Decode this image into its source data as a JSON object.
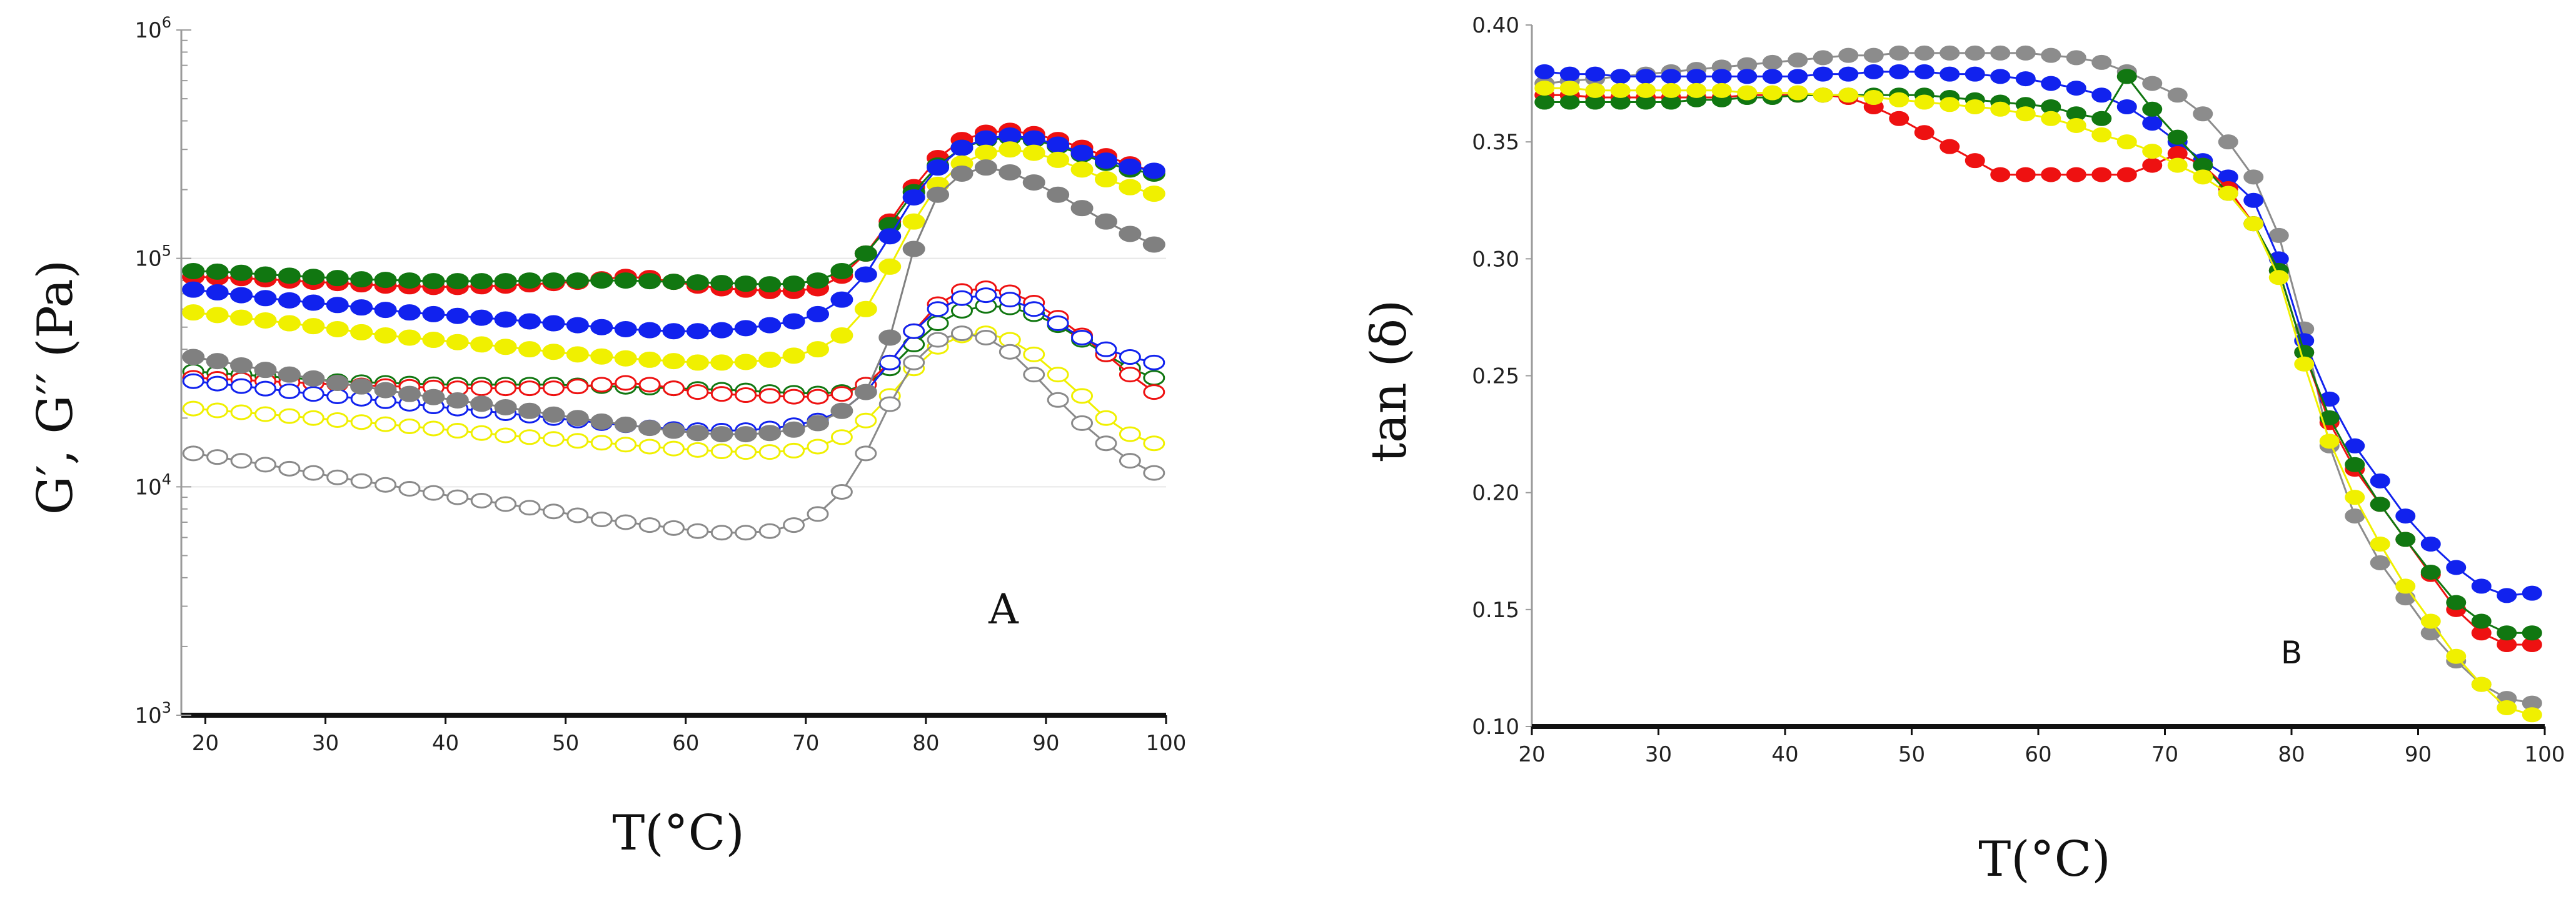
{
  "chart_data": [
    {
      "type": "scatter",
      "panel_label": "A",
      "title": "",
      "xlabel": "T(°C)",
      "ylabel": "G′, G′′ (Pa)",
      "xlim": [
        18,
        100
      ],
      "ylim": [
        1000,
        1000000
      ],
      "yscale": "log",
      "x_ticks": [
        20,
        30,
        40,
        50,
        60,
        70,
        80,
        90,
        100
      ],
      "y_ticks": [
        {
          "value": 1000,
          "base": "10",
          "exp": "3"
        },
        {
          "value": 10000,
          "base": "10",
          "exp": "4"
        },
        {
          "value": 100000,
          "base": "10",
          "exp": "5"
        },
        {
          "value": 1000000,
          "base": "10",
          "exp": "6"
        }
      ],
      "x": [
        19,
        21,
        23,
        25,
        27,
        29,
        31,
        33,
        35,
        37,
        39,
        41,
        43,
        45,
        47,
        49,
        51,
        53,
        55,
        57,
        59,
        61,
        63,
        65,
        67,
        69,
        71,
        73,
        75,
        77,
        79,
        81,
        83,
        85,
        87,
        89,
        91,
        93,
        95,
        97,
        99
      ],
      "series": [
        {
          "name": "G′ red",
          "modulus": "storage",
          "color": "#ee1111",
          "filled": true,
          "values": [
            83000,
            82500,
            82000,
            81000,
            80000,
            79000,
            78000,
            77000,
            76000,
            75500,
            75000,
            75000,
            75500,
            76000,
            77000,
            78000,
            79000,
            81000,
            83000,
            82000,
            79000,
            76000,
            74000,
            73000,
            72000,
            72000,
            74000,
            84000,
            105000,
            145000,
            205000,
            275000,
            330000,
            355000,
            362000,
            350000,
            330000,
            305000,
            280000,
            258000,
            240000
          ]
        },
        {
          "name": "G′ green",
          "modulus": "storage",
          "color": "#117711",
          "filled": true,
          "values": [
            88000,
            87500,
            86500,
            85000,
            84000,
            83000,
            82000,
            81000,
            80500,
            80000,
            79500,
            79500,
            79500,
            79500,
            80000,
            80000,
            80000,
            80000,
            80000,
            79500,
            79000,
            78500,
            78000,
            77500,
            77000,
            77500,
            80000,
            88000,
            105000,
            140000,
            195000,
            255000,
            305000,
            330000,
            338000,
            330000,
            310000,
            285000,
            262000,
            245000,
            235000
          ]
        },
        {
          "name": "G′ blue",
          "modulus": "storage",
          "color": "#1122ee",
          "filled": true,
          "values": [
            73000,
            71000,
            69000,
            67000,
            65500,
            64000,
            62500,
            61000,
            59500,
            58000,
            57000,
            56000,
            55000,
            54000,
            53000,
            52000,
            51000,
            50000,
            49000,
            48500,
            48000,
            48000,
            48500,
            49500,
            51000,
            53000,
            57000,
            66000,
            85000,
            125000,
            185000,
            250000,
            305000,
            335000,
            345000,
            335000,
            315000,
            290000,
            268000,
            252000,
            242000
          ]
        },
        {
          "name": "G′ yellow",
          "modulus": "storage",
          "color": "#f0f000",
          "filled": true,
          "values": [
            58000,
            56500,
            55000,
            53500,
            52000,
            50500,
            49000,
            47500,
            46000,
            45000,
            44000,
            43000,
            42000,
            41000,
            40000,
            39000,
            38000,
            37200,
            36500,
            36000,
            35500,
            35000,
            35000,
            35200,
            36000,
            37500,
            40000,
            46000,
            60000,
            92000,
            145000,
            210000,
            260000,
            290000,
            300000,
            290000,
            270000,
            245000,
            222000,
            205000,
            192000
          ]
        },
        {
          "name": "G′ grey",
          "modulus": "storage",
          "color": "#808080",
          "filled": true,
          "values": [
            37000,
            35500,
            34000,
            32500,
            31000,
            29800,
            28500,
            27500,
            26500,
            25500,
            24700,
            23900,
            23100,
            22300,
            21500,
            20700,
            20000,
            19300,
            18700,
            18100,
            17600,
            17200,
            17000,
            17000,
            17200,
            17800,
            19000,
            21500,
            26000,
            45000,
            110000,
            190000,
            235000,
            250000,
            238000,
            215000,
            190000,
            166000,
            145000,
            128000,
            115000
          ]
        },
        {
          "name": "G′′ green",
          "modulus": "loss",
          "color": "#117711",
          "filled": false,
          "values": [
            32000,
            31500,
            31000,
            30500,
            30000,
            29500,
            29000,
            28700,
            28500,
            28300,
            28100,
            28000,
            28000,
            28000,
            28000,
            28000,
            27800,
            27600,
            27400,
            27200,
            27000,
            26800,
            26600,
            26400,
            26000,
            25800,
            25600,
            26000,
            28000,
            33000,
            42000,
            52000,
            59000,
            62000,
            61000,
            57000,
            51000,
            44000,
            38000,
            33000,
            30000
          ]
        },
        {
          "name": "G′′ red",
          "modulus": "loss",
          "color": "#ee1111",
          "filled": false,
          "values": [
            30000,
            29700,
            29400,
            29000,
            28700,
            28400,
            28100,
            27800,
            27600,
            27400,
            27200,
            27000,
            27000,
            27000,
            27000,
            27000,
            27500,
            28000,
            28500,
            28000,
            27000,
            26000,
            25500,
            25200,
            25000,
            24800,
            24800,
            25500,
            28000,
            35000,
            48000,
            63000,
            72000,
            74000,
            71000,
            64000,
            55000,
            46000,
            38000,
            31000,
            26000
          ]
        },
        {
          "name": "G′′ blue",
          "modulus": "loss",
          "color": "#1122ee",
          "filled": false,
          "values": [
            29000,
            28300,
            27600,
            26900,
            26200,
            25500,
            24900,
            24300,
            23700,
            23100,
            22500,
            22000,
            21500,
            21000,
            20500,
            20000,
            19500,
            19000,
            18600,
            18200,
            17900,
            17700,
            17600,
            17700,
            18000,
            18600,
            19500,
            21500,
            26000,
            35000,
            48000,
            60000,
            67000,
            69000,
            66000,
            60000,
            52000,
            45000,
            40000,
            37000,
            35000
          ]
        },
        {
          "name": "G′′ yellow",
          "modulus": "loss",
          "color": "#f0f000",
          "filled": false,
          "values": [
            22000,
            21600,
            21200,
            20800,
            20400,
            20000,
            19600,
            19200,
            18800,
            18400,
            18000,
            17600,
            17200,
            16800,
            16500,
            16200,
            15900,
            15600,
            15300,
            15000,
            14700,
            14500,
            14300,
            14200,
            14200,
            14400,
            15000,
            16500,
            19500,
            25000,
            33000,
            41000,
            46000,
            47000,
            44000,
            38000,
            31000,
            25000,
            20000,
            17000,
            15500
          ]
        },
        {
          "name": "G′′ grey",
          "modulus": "loss",
          "color": "#8a8a8a",
          "filled": false,
          "values": [
            14000,
            13500,
            13000,
            12500,
            12000,
            11500,
            11000,
            10600,
            10200,
            9800,
            9400,
            9000,
            8700,
            8400,
            8100,
            7800,
            7500,
            7200,
            7000,
            6800,
            6600,
            6400,
            6300,
            6300,
            6400,
            6800,
            7600,
            9500,
            14000,
            23000,
            35000,
            44000,
            47000,
            45000,
            39000,
            31000,
            24000,
            19000,
            15500,
            13000,
            11500
          ]
        }
      ]
    },
    {
      "type": "line",
      "panel_label": "B",
      "title": "",
      "xlabel": "T(°C)",
      "ylabel": "tan (δ)",
      "xlim": [
        20,
        100
      ],
      "ylim": [
        0.1,
        0.4
      ],
      "x_ticks": [
        20,
        30,
        40,
        50,
        60,
        70,
        80,
        90,
        100
      ],
      "y_ticks": [
        "0.10",
        "0.15",
        "0.20",
        "0.25",
        "0.30",
        "0.35",
        "0.40"
      ],
      "x": [
        21,
        23,
        25,
        27,
        29,
        31,
        33,
        35,
        37,
        39,
        41,
        43,
        45,
        47,
        49,
        51,
        53,
        55,
        57,
        59,
        61,
        63,
        65,
        67,
        69,
        71,
        73,
        75,
        77,
        79,
        81,
        83,
        85,
        87,
        89,
        91,
        93,
        95,
        97,
        99
      ],
      "series": [
        {
          "name": "grey",
          "color": "#8c8c8c",
          "values": [
            0.375,
            0.376,
            0.377,
            0.378,
            0.379,
            0.38,
            0.381,
            0.382,
            0.383,
            0.384,
            0.385,
            0.386,
            0.387,
            0.387,
            0.388,
            0.388,
            0.388,
            0.388,
            0.388,
            0.388,
            0.387,
            0.386,
            0.384,
            0.38,
            0.375,
            0.37,
            0.362,
            0.35,
            0.335,
            0.31,
            0.27,
            0.22,
            0.19,
            0.17,
            0.155,
            0.14,
            0.128,
            0.118,
            0.112,
            0.11
          ]
        },
        {
          "name": "blue",
          "color": "#1122ee",
          "values": [
            0.38,
            0.379,
            0.379,
            0.378,
            0.378,
            0.378,
            0.378,
            0.378,
            0.378,
            0.378,
            0.378,
            0.379,
            0.379,
            0.38,
            0.38,
            0.38,
            0.379,
            0.379,
            0.378,
            0.377,
            0.375,
            0.373,
            0.37,
            0.365,
            0.358,
            0.35,
            0.342,
            0.335,
            0.325,
            0.3,
            0.265,
            0.24,
            0.22,
            0.205,
            0.19,
            0.178,
            0.168,
            0.16,
            0.156,
            0.157
          ]
        },
        {
          "name": "red",
          "color": "#ee1111",
          "values": [
            0.37,
            0.37,
            0.369,
            0.369,
            0.369,
            0.369,
            0.369,
            0.369,
            0.37,
            0.37,
            0.37,
            0.37,
            0.369,
            0.365,
            0.36,
            0.354,
            0.348,
            0.342,
            0.336,
            0.336,
            0.336,
            0.336,
            0.336,
            0.336,
            0.34,
            0.345,
            0.34,
            0.33,
            0.315,
            0.295,
            0.26,
            0.23,
            0.21,
            0.195,
            0.18,
            0.165,
            0.15,
            0.14,
            0.135,
            0.135
          ]
        },
        {
          "name": "green",
          "color": "#117711",
          "values": [
            0.367,
            0.367,
            0.367,
            0.367,
            0.367,
            0.367,
            0.368,
            0.368,
            0.369,
            0.369,
            0.37,
            0.37,
            0.37,
            0.37,
            0.37,
            0.37,
            0.369,
            0.368,
            0.367,
            0.366,
            0.365,
            0.362,
            0.36,
            0.378,
            0.364,
            0.352,
            0.34,
            0.328,
            0.315,
            0.295,
            0.26,
            0.232,
            0.212,
            0.195,
            0.18,
            0.166,
            0.153,
            0.145,
            0.14,
            0.14
          ]
        },
        {
          "name": "yellow",
          "color": "#f0f000",
          "values": [
            0.373,
            0.373,
            0.372,
            0.372,
            0.372,
            0.372,
            0.372,
            0.372,
            0.371,
            0.371,
            0.371,
            0.37,
            0.37,
            0.369,
            0.368,
            0.367,
            0.366,
            0.365,
            0.364,
            0.362,
            0.36,
            0.357,
            0.353,
            0.35,
            0.346,
            0.34,
            0.335,
            0.328,
            0.315,
            0.292,
            0.255,
            0.222,
            0.198,
            0.178,
            0.16,
            0.145,
            0.13,
            0.118,
            0.108,
            0.105
          ]
        }
      ]
    }
  ]
}
